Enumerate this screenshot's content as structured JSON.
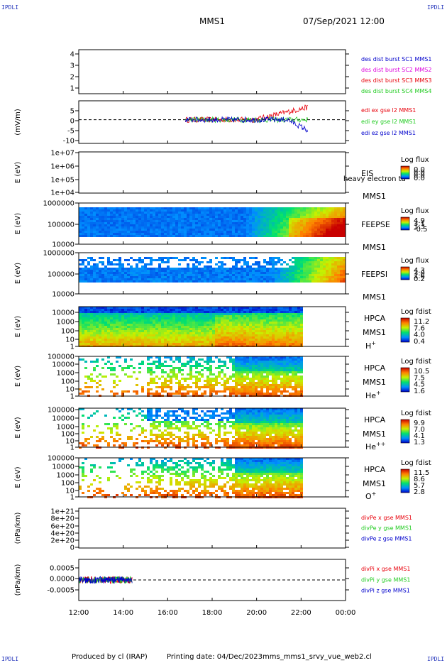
{
  "corner_label": "IPDLI",
  "header": {
    "spacecraft": "MMS1",
    "datetime": "07/Sep/2021 12:00"
  },
  "footer": {
    "produced": "Produced by cl (IRAP)",
    "printing": "Printing date: 04/Dec/2023",
    "file": "mms_mms1_srvy_vue_web2.cl"
  },
  "x_axis": {
    "ticks": [
      "12:00",
      "14:00",
      "16:00",
      "18:00",
      "20:00",
      "22:00",
      "00:00"
    ]
  },
  "colors": {
    "red": "#e8000b",
    "green": "#22cc22",
    "blue": "#0000cc",
    "magenta": "#dd00dd",
    "black": "#000000"
  },
  "chart_data": [
    {
      "type": "line",
      "id": "des",
      "ylabel": "",
      "yticks": [
        "4",
        "3",
        "2",
        "1"
      ],
      "ylim": [
        0.7,
        4.4
      ],
      "legend": [
        {
          "name": "des dist burst SC1 MMS1",
          "color": "#0000cc"
        },
        {
          "name": "des dist burst SC2 MMS2",
          "color": "#dd00dd"
        },
        {
          "name": "des dist burst SC3 MMS3",
          "color": "#e8000b"
        },
        {
          "name": "des dist burst SC4 MMS4",
          "color": "#22cc22"
        }
      ]
    },
    {
      "type": "line",
      "id": "edi",
      "ylabel": "(mV/m)",
      "yticks": [
        "5",
        "0",
        "-5",
        "-10"
      ],
      "ylim": [
        -10,
        8
      ],
      "legend": [
        {
          "name": "edi ex gse l2 MMS1",
          "color": "#e8000b"
        },
        {
          "name": "edi ey gse l2 MMS1",
          "color": "#22cc22"
        },
        {
          "name": "edi ez gse l2 MMS1",
          "color": "#0000cc"
        }
      ],
      "data_window_hours": [
        16.8,
        22.3
      ]
    },
    {
      "type": "heatmap",
      "id": "eis",
      "ylabel": "E (eV)",
      "yticks": [
        "1e+07",
        "1e+06",
        "1e+05",
        "1e+04"
      ],
      "labels": [
        "EIS",
        "MMS1"
      ],
      "overlay": "heavy electron ta",
      "colorbar": {
        "title": "Log flux",
        "ticks": [
          "0.0",
          "0.0",
          "0.0",
          "0.0"
        ]
      }
    },
    {
      "type": "heatmap",
      "id": "feepse",
      "ylabel": "E (eV)",
      "yticks": [
        "1000000",
        "100000",
        "10000"
      ],
      "labels": [
        "FEEPSE",
        "MMS1"
      ],
      "colorbar": {
        "title": "Log flux",
        "ticks": [
          "4.9",
          "3.1",
          "1.3",
          "-0.5"
        ]
      }
    },
    {
      "type": "heatmap",
      "id": "feepsi",
      "ylabel": "E (eV)",
      "yticks": [
        "1000000",
        "100000",
        "10000"
      ],
      "labels": [
        "FEEPSI",
        "MMS1"
      ],
      "colorbar": {
        "title": "Log flux",
        "ticks": [
          "4.3",
          "3.0",
          "1.6",
          "0.2"
        ]
      }
    },
    {
      "type": "heatmap",
      "id": "hpca_h",
      "ylabel": "E (eV)",
      "yticks": [
        "10000",
        "1000",
        "100",
        "10",
        "1"
      ],
      "labels": [
        "HPCA",
        "MMS1"
      ],
      "species": "H",
      "charge": "+",
      "colorbar": {
        "title": "Log fdist",
        "ticks": [
          "11.2",
          "7.6",
          "4.0",
          "0.4"
        ]
      },
      "data_window_hours": [
        12,
        22
      ]
    },
    {
      "type": "heatmap",
      "id": "hpca_he",
      "ylabel": "E (eV)",
      "yticks": [
        "100000",
        "10000",
        "1000",
        "100",
        "10",
        "1"
      ],
      "labels": [
        "HPCA",
        "MMS1"
      ],
      "species": "He",
      "charge": "+",
      "colorbar": {
        "title": "Log fdist",
        "ticks": [
          "10.5",
          "7.5",
          "4.5",
          "1.6"
        ]
      },
      "data_window_hours": [
        12,
        22
      ]
    },
    {
      "type": "heatmap",
      "id": "hpca_hepp",
      "ylabel": "E (eV)",
      "yticks": [
        "100000",
        "10000",
        "1000",
        "100",
        "10",
        "1"
      ],
      "labels": [
        "HPCA",
        "MMS1"
      ],
      "species": "He",
      "charge": "++",
      "colorbar": {
        "title": "Log fdist",
        "ticks": [
          "9.9",
          "7.0",
          "4.1",
          "1.3"
        ]
      },
      "data_window_hours": [
        12,
        22
      ]
    },
    {
      "type": "heatmap",
      "id": "hpca_o",
      "ylabel": "E (eV)",
      "yticks": [
        "100000",
        "10000",
        "1000",
        "100",
        "10",
        "1"
      ],
      "labels": [
        "HPCA",
        "MMS1"
      ],
      "species": "O",
      "charge": "+",
      "colorbar": {
        "title": "Log fdist",
        "ticks": [
          "11.5",
          "8.6",
          "5.7",
          "2.8"
        ]
      },
      "data_window_hours": [
        12,
        22
      ]
    },
    {
      "type": "line",
      "id": "divpe",
      "ylabel": "(nPa/km)",
      "yticks": [
        "1e+21",
        "8e+20",
        "6e+20",
        "4e+20",
        "2e+20",
        "0"
      ],
      "ylim": [
        0,
        1.1e+21
      ],
      "legend": [
        {
          "name": "divPe x gse MMS1",
          "color": "#e8000b"
        },
        {
          "name": "divPe y gse MMS1",
          "color": "#22cc22"
        },
        {
          "name": "divPe z gse MMS1",
          "color": "#0000cc"
        }
      ]
    },
    {
      "type": "line",
      "id": "divpi",
      "ylabel": "(nPa/km)",
      "yticks": [
        "0.0005",
        "0.0000",
        "-0.0005"
      ],
      "ylim": [
        -0.0009,
        0.0009
      ],
      "legend": [
        {
          "name": "divPi x gse MMS1",
          "color": "#e8000b"
        },
        {
          "name": "divPi y gse MMS1",
          "color": "#22cc22"
        },
        {
          "name": "divPi z gse MMS1",
          "color": "#0000cc"
        }
      ],
      "data_window_hours": [
        12,
        14.4
      ]
    }
  ]
}
